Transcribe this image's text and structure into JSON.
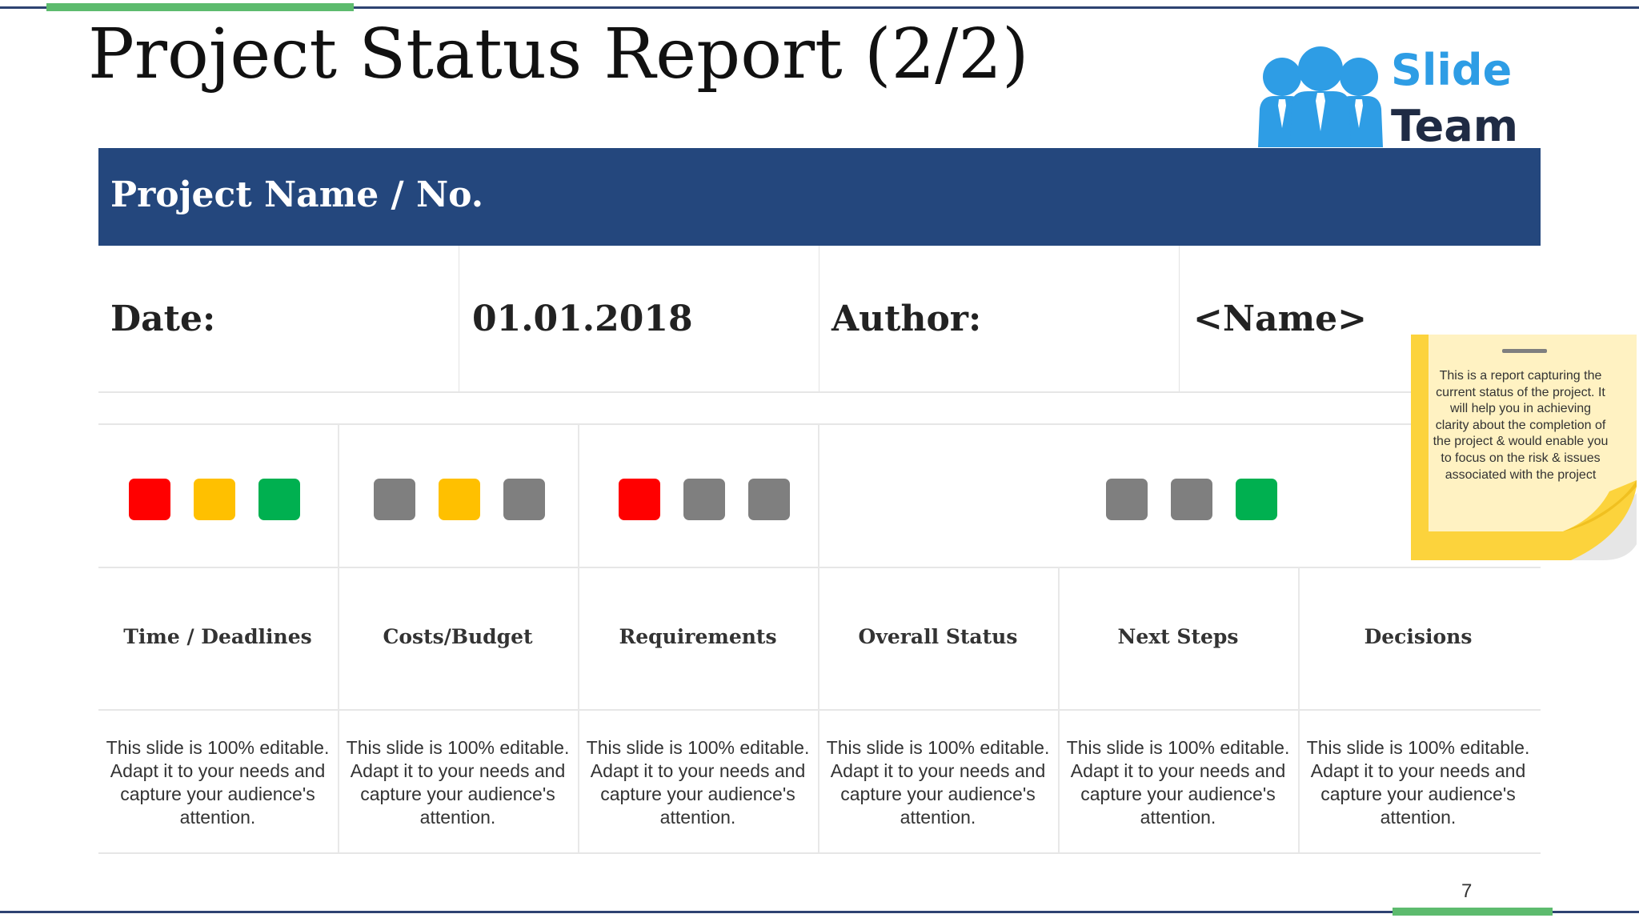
{
  "slide": {
    "title": "Project Status Report (2/2)",
    "page_number": "7"
  },
  "logo": {
    "line1": "Slide",
    "line2": "Team"
  },
  "banner": {
    "label": "Project Name / No."
  },
  "info": {
    "date_label": "Date:",
    "date_value": "01.01.2018",
    "author_label": "Author:",
    "author_value": "<Name>"
  },
  "status_colors": {
    "red": "#ff0000",
    "amber": "#ffc000",
    "green": "#00b050",
    "grey": "#7f7f7f"
  },
  "indicator_groups": [
    {
      "lights": [
        "red",
        "amber",
        "green"
      ]
    },
    {
      "lights": [
        "grey",
        "amber",
        "grey"
      ]
    },
    {
      "lights": [
        "red",
        "grey",
        "grey"
      ]
    },
    {
      "lights": [
        "grey",
        "grey",
        "green"
      ]
    }
  ],
  "columns": [
    {
      "header": "Time / Deadlines",
      "description": "This slide is 100% editable. Adapt it to your needs and capture your audience's attention."
    },
    {
      "header": "Costs/Budget",
      "description": "This slide is 100% editable. Adapt it to your needs and capture your audience's attention."
    },
    {
      "header": "Requirements",
      "description": "This slide is 100% editable. Adapt it to your needs and capture your audience's attention."
    },
    {
      "header": "Overall Status",
      "description": "This slide is 100% editable. Adapt it to your needs and capture your audience's attention."
    },
    {
      "header": "Next Steps",
      "description": "This slide is 100% editable. Adapt it to your needs and capture your audience's attention."
    },
    {
      "header": "Decisions",
      "description": "This slide is 100% editable. Adapt it to your needs and capture your audience's attention."
    }
  ],
  "sticky_note": {
    "text": "This is a report capturing the current status of the project. It will help you in achieving clarity about the completion of the project & would enable you to focus on the risk & issues associated with the project"
  }
}
